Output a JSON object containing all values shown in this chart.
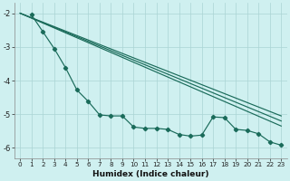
{
  "xlabel": "Humidex (Indice chaleur)",
  "bg_color": "#cff0f0",
  "grid_color": "#aad4d4",
  "line_color": "#1a6b5a",
  "xlim": [
    -0.5,
    23.5
  ],
  "ylim": [
    -6.3,
    -1.7
  ],
  "yticks": [
    -2,
    -3,
    -4,
    -5,
    -6
  ],
  "xticks": [
    0,
    1,
    2,
    3,
    4,
    5,
    6,
    7,
    8,
    9,
    10,
    11,
    12,
    13,
    14,
    15,
    16,
    17,
    18,
    19,
    20,
    21,
    22,
    23
  ],
  "line_straight1": [
    [
      -0.5,
      -1.97
    ],
    [
      23.5,
      -5.08
    ]
  ],
  "line_straight2": [
    [
      -0.5,
      -1.97
    ],
    [
      23.5,
      -5.28
    ]
  ],
  "line_zigzag": [
    [
      1,
      -2.05
    ],
    [
      2,
      -2.55
    ],
    [
      3,
      -3.05
    ],
    [
      4,
      -3.62
    ],
    [
      5,
      -4.28
    ],
    [
      6,
      -4.62
    ],
    [
      7,
      -5.02
    ],
    [
      8,
      -5.05
    ],
    [
      9,
      -5.05
    ],
    [
      10,
      -5.38
    ],
    [
      11,
      -5.42
    ],
    [
      12,
      -5.42
    ],
    [
      13,
      -5.45
    ],
    [
      14,
      -5.6
    ],
    [
      15,
      -5.65
    ],
    [
      16,
      -5.62
    ],
    [
      17,
      -5.08
    ],
    [
      18,
      -5.1
    ],
    [
      19,
      -5.45
    ],
    [
      20,
      -5.48
    ],
    [
      21,
      -5.58
    ],
    [
      22,
      -5.82
    ],
    [
      23,
      -5.92
    ]
  ],
  "line_zigzag2": [
    [
      1,
      -2.05
    ],
    [
      2,
      -2.55
    ],
    [
      3,
      -3.05
    ],
    [
      4,
      -3.62
    ],
    [
      5,
      -4.28
    ],
    [
      6,
      -4.62
    ],
    [
      7,
      -5.02
    ],
    [
      8,
      -5.05
    ],
    [
      9,
      -5.05
    ],
    [
      10,
      -5.38
    ],
    [
      11,
      -5.42
    ],
    [
      12,
      -5.42
    ],
    [
      13,
      -5.45
    ],
    [
      14,
      -5.6
    ],
    [
      15,
      -5.65
    ],
    [
      16,
      -5.62
    ],
    [
      17,
      -5.08
    ],
    [
      18,
      -5.1
    ],
    [
      19,
      -5.45
    ],
    [
      20,
      -5.48
    ],
    [
      21,
      -5.58
    ],
    [
      22,
      -5.82
    ],
    [
      23,
      -5.92
    ]
  ]
}
